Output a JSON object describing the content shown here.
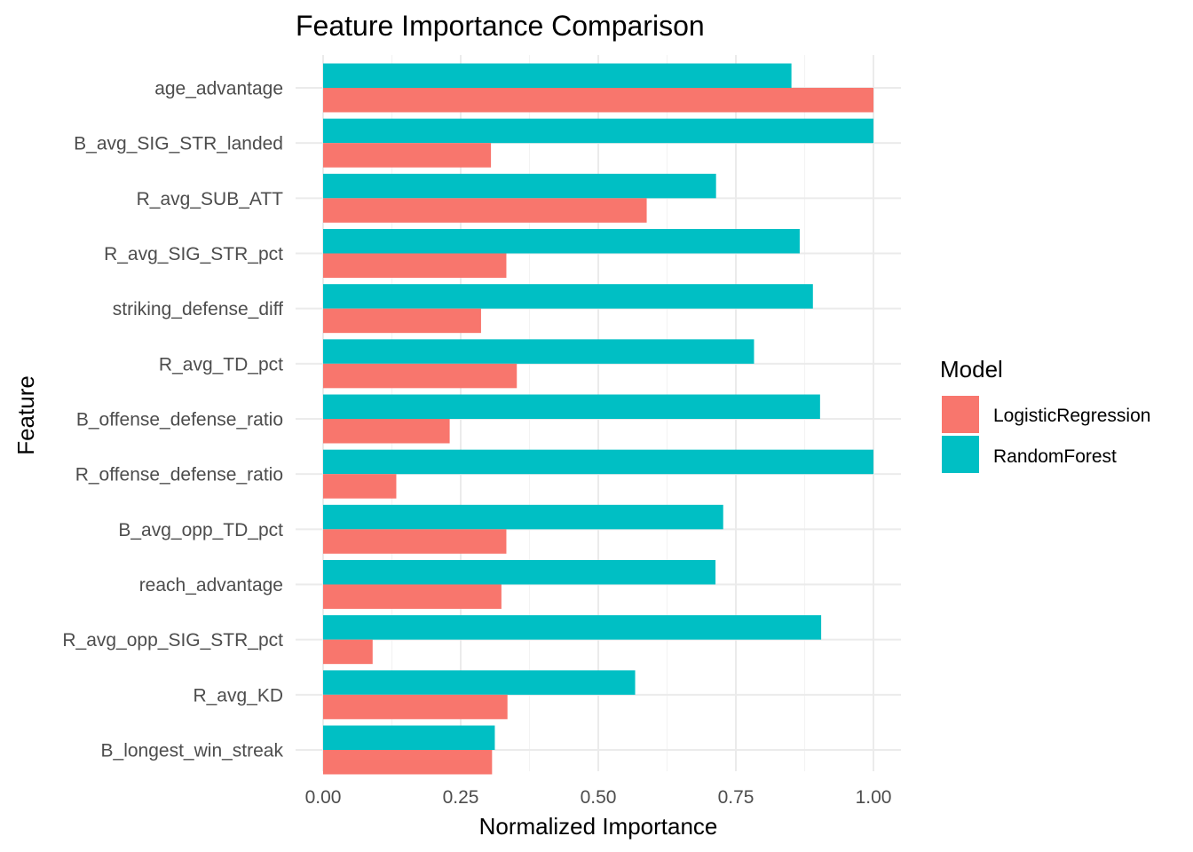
{
  "chart_data": {
    "type": "bar",
    "orientation": "horizontal",
    "title": "Feature Importance Comparison",
    "xlabel": "Normalized Importance",
    "ylabel": "Feature",
    "xlim": [
      0,
      1.05
    ],
    "xticks": [
      "0.00",
      "0.25",
      "0.50",
      "0.75",
      "1.00"
    ],
    "grid": true,
    "legend": {
      "title": "Model",
      "position": "right"
    },
    "categories": [
      "age_advantage",
      "B_avg_SIG_STR_landed",
      "R_avg_SUB_ATT",
      "R_avg_SIG_STR_pct",
      "striking_defense_diff",
      "R_avg_TD_pct",
      "B_offense_defense_ratio",
      "R_offense_defense_ratio",
      "B_avg_opp_TD_pct",
      "reach_advantage",
      "R_avg_opp_SIG_STR_pct",
      "R_avg_KD",
      "B_longest_win_streak"
    ],
    "series": [
      {
        "name": "LogisticRegression",
        "color": "#F8766D",
        "values": [
          1.0,
          0.305,
          0.588,
          0.333,
          0.287,
          0.352,
          0.23,
          0.133,
          0.333,
          0.324,
          0.09,
          0.335,
          0.307
        ]
      },
      {
        "name": "RandomForest",
        "color": "#00BFC4",
        "values": [
          0.851,
          1.0,
          0.714,
          0.866,
          0.89,
          0.783,
          0.903,
          1.0,
          0.727,
          0.713,
          0.905,
          0.567,
          0.312
        ]
      }
    ]
  }
}
